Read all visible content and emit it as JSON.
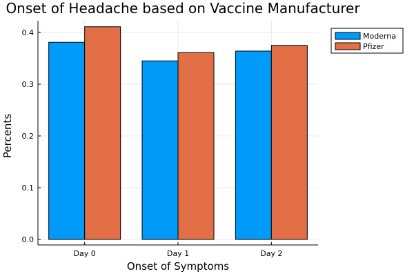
{
  "chart_data": {
    "type": "bar",
    "title": "Onset of Headache based on Vaccine Manufacturer",
    "xlabel": "Onset of Symptoms",
    "ylabel": "Percents",
    "categories": [
      "Day 0",
      "Day 1",
      "Day 2"
    ],
    "series": [
      {
        "name": "Moderna",
        "color": "#009af9",
        "values": [
          0.381,
          0.345,
          0.364
        ]
      },
      {
        "name": "Pfizer",
        "color": "#e26f46",
        "values": [
          0.411,
          0.361,
          0.375
        ]
      }
    ],
    "ylim": [
      0,
      0.42
    ],
    "yticks": [
      0.0,
      0.1,
      0.2,
      0.3,
      0.4
    ],
    "ytick_labels": [
      "0.0",
      "0.1",
      "0.2",
      "0.3",
      "0.4"
    ],
    "grid": true,
    "legend_position": "top-right"
  }
}
